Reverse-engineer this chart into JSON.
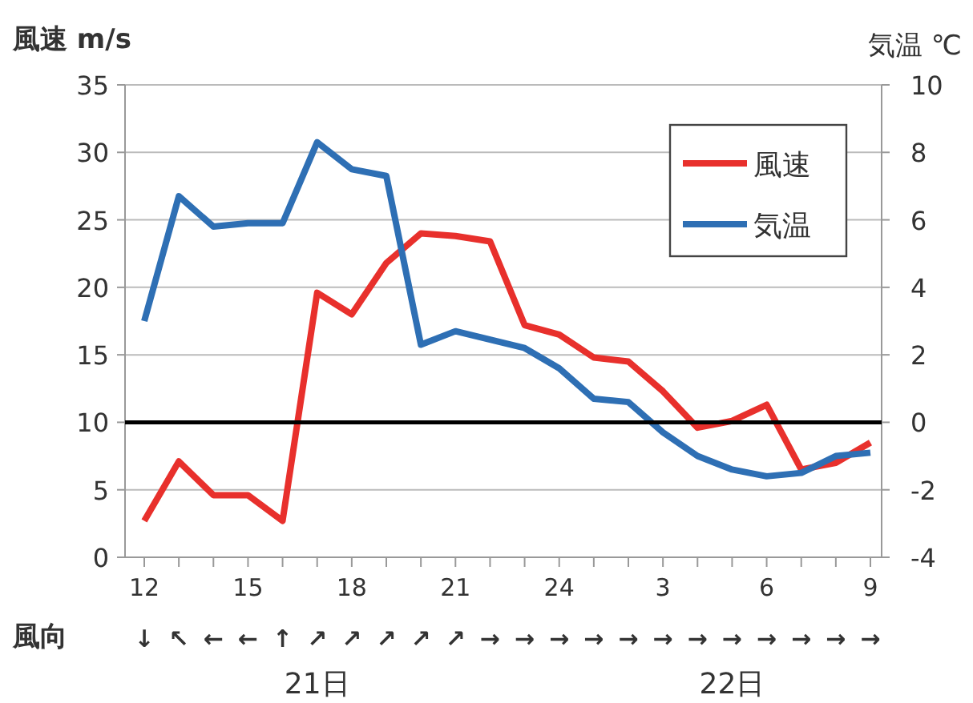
{
  "chart_data": {
    "type": "line",
    "ylabel": "風速 m/s",
    "y2label": "気温 ℃",
    "categories": [
      "12",
      null,
      null,
      "15",
      null,
      null,
      "18",
      null,
      null,
      "21",
      null,
      null,
      "24",
      null,
      null,
      "3",
      null,
      null,
      "6",
      null,
      null,
      "9"
    ],
    "series": [
      {
        "name": "風速",
        "color": "#e8302c",
        "values": [
          2.7,
          7.1,
          4.6,
          4.6,
          2.7,
          19.6,
          18.0,
          21.8,
          24.0,
          23.8,
          23.4,
          17.2,
          16.5,
          14.8,
          14.5,
          12.3,
          9.6,
          10.1,
          11.3,
          6.5,
          7.0,
          8.5
        ]
      },
      {
        "name": "気温",
        "color": "#2e6fb4",
        "axis": "y2",
        "values": [
          3.0,
          6.7,
          5.8,
          5.9,
          5.9,
          8.3,
          7.5,
          7.3,
          2.3,
          2.7,
          2.45,
          2.2,
          1.6,
          0.7,
          0.6,
          -0.3,
          -1.0,
          -1.4,
          -1.6,
          -1.5,
          -1.0,
          -0.9
        ]
      }
    ],
    "ylim": [
      0,
      35
    ],
    "yticks": [
      0,
      5,
      10,
      15,
      20,
      25,
      30,
      35
    ],
    "y2lim": [
      -4,
      10
    ],
    "y2ticks": [
      -4,
      -2,
      0,
      2,
      4,
      6,
      8,
      10
    ],
    "ref_lines": [
      {
        "axis": "y2",
        "value": 0,
        "color": "#000000"
      }
    ],
    "grid": "y",
    "legend": "top right",
    "marker": "none",
    "line_style": "solid",
    "annotations": [
      "風向",
      "↓",
      "↖",
      "←",
      "←",
      "↑",
      "↗",
      "↗",
      "↗",
      "↗",
      "↗",
      "→",
      "→",
      "→",
      "→",
      "→",
      "→",
      "→",
      "→",
      "→",
      "→",
      "→",
      "→",
      "21日",
      "22日"
    ]
  }
}
